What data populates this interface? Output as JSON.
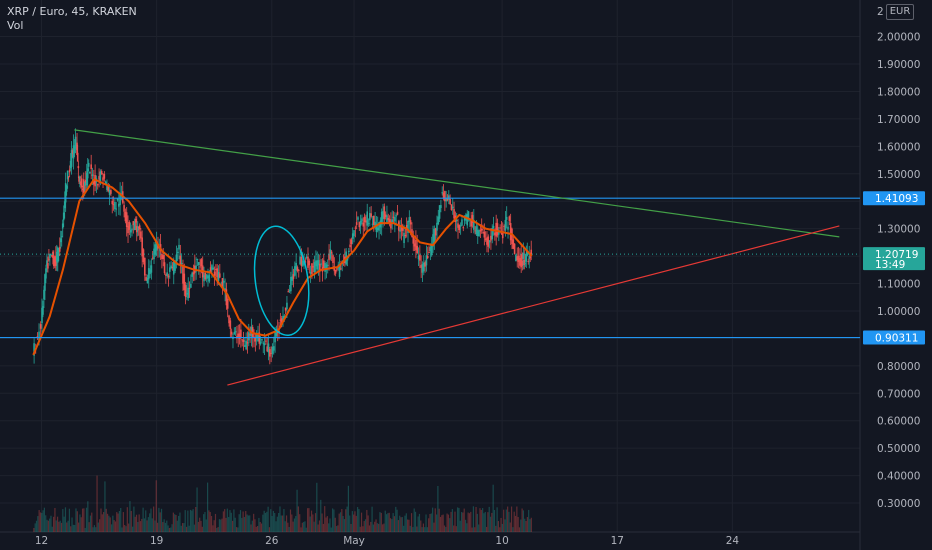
{
  "legend": {
    "symbol": "XRP / Euro, 45, KRAKEN",
    "volume_label": "Vol"
  },
  "scale_button": "EUR",
  "axis_top_partial": "2",
  "price_tags": [
    {
      "name": "level-1-41093",
      "label": "1.41093",
      "value": 1.41093,
      "color": "#2196f3"
    },
    {
      "name": "level-0-90311",
      "label": "0.90311",
      "value": 0.90311,
      "color": "#2196f3"
    }
  ],
  "current_price": {
    "value": 1.20719,
    "label": "1.20719",
    "timer": "13:49",
    "color": "#26a69a"
  },
  "colors": {
    "background": "#131722",
    "grid": "#1e222d",
    "up_candle": "#26a69a",
    "down_candle": "#ef5350",
    "moving_average": "#e65100",
    "support_trendline": "#e53935",
    "resistance_trendline": "#43a047",
    "horizontal_level": "#2196f3",
    "ellipse": "#00bcd4"
  },
  "chart_data": {
    "type": "candlestick",
    "title": "XRP / Euro, 45, KRAKEN",
    "y_ticks": [
      0.3,
      0.4,
      0.5,
      0.6,
      0.7,
      0.8,
      0.9,
      1.0,
      1.1,
      1.2,
      1.3,
      1.4,
      1.5,
      1.6,
      1.7,
      1.8,
      1.9,
      2.0
    ],
    "y_tick_labels": [
      "0.30000",
      "0.40000",
      "0.50000",
      "0.60000",
      "0.70000",
      "0.80000",
      "0.90000",
      "1.00000",
      "1.10000",
      "1.20000",
      "1.30000",
      "1.40000",
      "1.50000",
      "1.60000",
      "1.70000",
      "1.80000",
      "1.90000",
      "2.00000"
    ],
    "x_ticks": [
      {
        "label": "12",
        "day": 12
      },
      {
        "label": "19",
        "day": 19
      },
      {
        "label": "26",
        "day": 26
      },
      {
        "label": "May",
        "day": 31
      },
      {
        "label": "10",
        "day": 40
      },
      {
        "label": "17",
        "day": 47
      },
      {
        "label": "24",
        "day": 54
      }
    ],
    "price_path": [
      [
        11.5,
        0.84
      ],
      [
        12.0,
        0.95
      ],
      [
        12.3,
        1.15
      ],
      [
        12.6,
        1.2
      ],
      [
        12.9,
        1.18
      ],
      [
        13.2,
        1.25
      ],
      [
        13.5,
        1.45
      ],
      [
        13.8,
        1.55
      ],
      [
        14.1,
        1.62
      ],
      [
        14.3,
        1.48
      ],
      [
        14.6,
        1.45
      ],
      [
        14.9,
        1.52
      ],
      [
        15.3,
        1.47
      ],
      [
        15.7,
        1.5
      ],
      [
        16.1,
        1.44
      ],
      [
        16.5,
        1.38
      ],
      [
        16.9,
        1.42
      ],
      [
        17.3,
        1.3
      ],
      [
        17.7,
        1.32
      ],
      [
        18.0,
        1.28
      ],
      [
        18.4,
        1.1
      ],
      [
        18.8,
        1.2
      ],
      [
        19.2,
        1.25
      ],
      [
        19.6,
        1.12
      ],
      [
        20.0,
        1.15
      ],
      [
        20.4,
        1.22
      ],
      [
        20.8,
        1.05
      ],
      [
        21.2,
        1.14
      ],
      [
        21.6,
        1.18
      ],
      [
        22.0,
        1.1
      ],
      [
        22.4,
        1.16
      ],
      [
        22.8,
        1.12
      ],
      [
        23.2,
        1.08
      ],
      [
        23.6,
        0.9
      ],
      [
        24.0,
        0.92
      ],
      [
        24.4,
        0.87
      ],
      [
        24.8,
        0.93
      ],
      [
        25.2,
        0.9
      ],
      [
        25.6,
        0.88
      ],
      [
        26.0,
        0.85
      ],
      [
        26.4,
        0.93
      ],
      [
        26.8,
        1.0
      ],
      [
        27.2,
        1.12
      ],
      [
        27.6,
        1.16
      ],
      [
        28.0,
        1.2
      ],
      [
        28.4,
        1.15
      ],
      [
        28.8,
        1.17
      ],
      [
        29.2,
        1.16
      ],
      [
        29.6,
        1.2
      ],
      [
        30.0,
        1.14
      ],
      [
        30.4,
        1.18
      ],
      [
        30.8,
        1.24
      ],
      [
        31.2,
        1.33
      ],
      [
        31.6,
        1.32
      ],
      [
        32.0,
        1.35
      ],
      [
        32.4,
        1.3
      ],
      [
        32.8,
        1.36
      ],
      [
        33.2,
        1.31
      ],
      [
        33.6,
        1.34
      ],
      [
        34.0,
        1.27
      ],
      [
        34.4,
        1.32
      ],
      [
        34.8,
        1.22
      ],
      [
        35.2,
        1.15
      ],
      [
        35.6,
        1.2
      ],
      [
        36.0,
        1.3
      ],
      [
        36.4,
        1.43
      ],
      [
        36.8,
        1.4
      ],
      [
        37.2,
        1.33
      ],
      [
        37.6,
        1.31
      ],
      [
        38.0,
        1.35
      ],
      [
        38.4,
        1.3
      ],
      [
        38.8,
        1.28
      ],
      [
        39.2,
        1.25
      ],
      [
        39.6,
        1.3
      ],
      [
        40.0,
        1.28
      ],
      [
        40.4,
        1.33
      ],
      [
        40.8,
        1.2
      ],
      [
        41.2,
        1.18
      ],
      [
        41.5,
        1.2
      ],
      [
        41.8,
        1.21
      ]
    ],
    "moving_average": [
      [
        11.5,
        0.84
      ],
      [
        12.5,
        0.98
      ],
      [
        13.3,
        1.15
      ],
      [
        14.3,
        1.4
      ],
      [
        15.2,
        1.48
      ],
      [
        16.3,
        1.45
      ],
      [
        17.3,
        1.4
      ],
      [
        18.3,
        1.32
      ],
      [
        19.3,
        1.22
      ],
      [
        20.3,
        1.17
      ],
      [
        21.3,
        1.15
      ],
      [
        22.3,
        1.14
      ],
      [
        23.3,
        1.06
      ],
      [
        24.0,
        0.97
      ],
      [
        24.8,
        0.92
      ],
      [
        25.6,
        0.91
      ],
      [
        26.4,
        0.93
      ],
      [
        27.3,
        1.03
      ],
      [
        28.2,
        1.12
      ],
      [
        29.0,
        1.15
      ],
      [
        30.0,
        1.16
      ],
      [
        31.0,
        1.22
      ],
      [
        31.8,
        1.29
      ],
      [
        32.6,
        1.32
      ],
      [
        33.4,
        1.32
      ],
      [
        34.2,
        1.3
      ],
      [
        35.0,
        1.25
      ],
      [
        35.8,
        1.24
      ],
      [
        36.6,
        1.3
      ],
      [
        37.4,
        1.35
      ],
      [
        38.2,
        1.33
      ],
      [
        39.0,
        1.3
      ],
      [
        39.8,
        1.29
      ],
      [
        40.6,
        1.28
      ],
      [
        41.2,
        1.24
      ],
      [
        41.8,
        1.2
      ]
    ],
    "annotations": {
      "resistance_trendline": [
        [
          14.0,
          1.66
        ],
        [
          60.5,
          1.27
        ]
      ],
      "support_trendline": [
        [
          23.3,
          0.73
        ],
        [
          60.5,
          1.31
        ]
      ],
      "horizontal_levels": [
        1.41093,
        0.90311
      ],
      "ellipse": {
        "center": [
          26.6,
          1.11
        ],
        "x_radius": 2.9,
        "y_radius": 0.2,
        "rotation": -8
      }
    }
  }
}
